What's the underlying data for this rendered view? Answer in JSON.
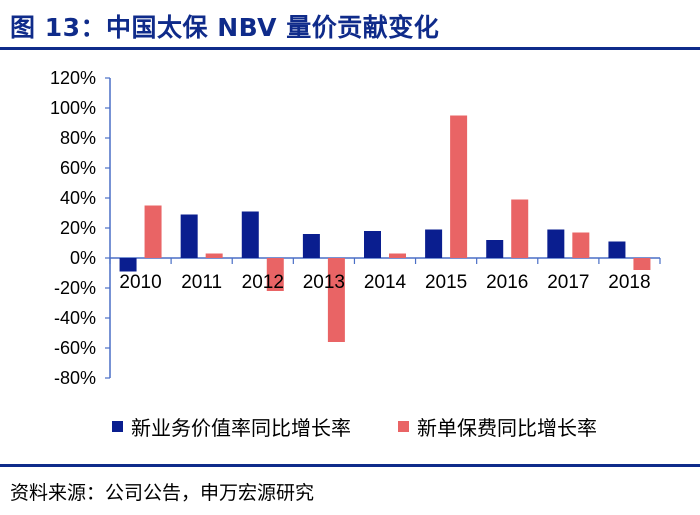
{
  "header": {
    "title": "图 13：中国太保 NBV 量价贡献变化"
  },
  "footer": {
    "source": "资料来源：公司公告，申万宏源研究"
  },
  "colors": {
    "series1": "#0a1e8f",
    "series2": "#e96465",
    "axis": "#4a6fc6",
    "title": "#0f2b8a"
  },
  "chart_data": {
    "type": "bar",
    "title": "",
    "xlabel": "",
    "ylabel": "",
    "categories": [
      "2010",
      "2011",
      "2012",
      "2013",
      "2014",
      "2015",
      "2016",
      "2017",
      "2018"
    ],
    "ylim": [
      -80,
      120
    ],
    "yticks": [
      "120%",
      "100%",
      "80%",
      "60%",
      "40%",
      "20%",
      "0%",
      "-20%",
      "-40%",
      "-60%",
      "-80%"
    ],
    "ytick_values": [
      120,
      100,
      80,
      60,
      40,
      20,
      0,
      -20,
      -40,
      -60,
      -80
    ],
    "grid": false,
    "legend_position": "bottom",
    "series": [
      {
        "name": "新业务价值率同比增长率",
        "color": "#0a1e8f",
        "values": [
          -9,
          29,
          31,
          16,
          18,
          19,
          12,
          19,
          11
        ]
      },
      {
        "name": "新单保费同比增长率",
        "color": "#e96465",
        "values": [
          35,
          3,
          -22,
          -56,
          3,
          95,
          39,
          17,
          -8
        ]
      }
    ]
  }
}
